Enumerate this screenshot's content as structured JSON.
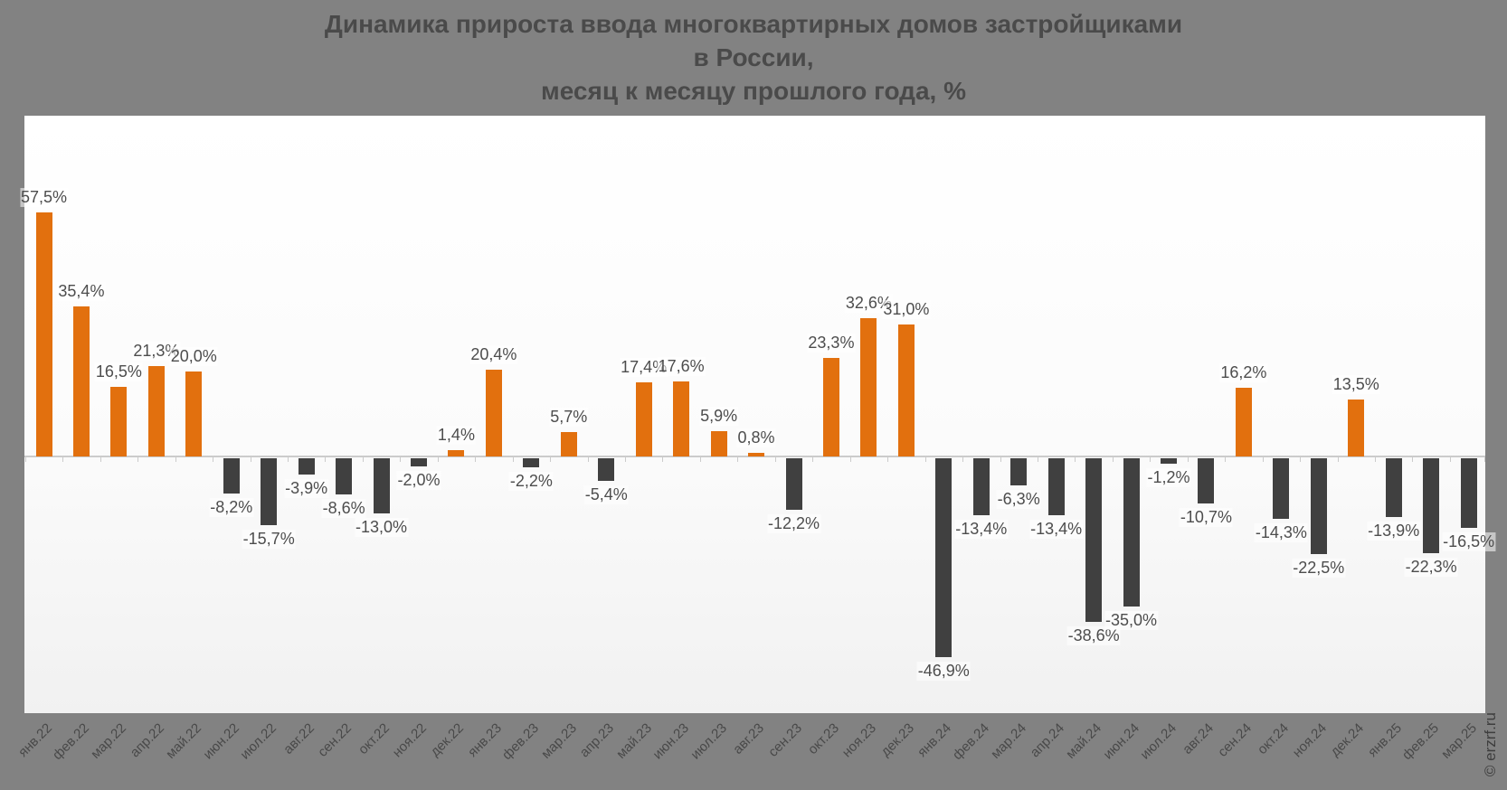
{
  "title": {
    "lines": [
      "Динамика прироста ввода многоквартирных домов застройщиками",
      "в России,",
      "месяц к месяцу прошлого года, %"
    ]
  },
  "watermark": "© erzrf.ru",
  "colors": {
    "page_background": "#828282",
    "positive_bar": "#e2700e",
    "negative_bar": "#404040",
    "axis": "#cbcbcb",
    "title_text": "#4a4a4a",
    "value_label_text": "#4d4d4d",
    "axis_label_text": "#494949"
  },
  "chart_data": {
    "type": "bar",
    "title": "Динамика прироста ввода многоквартирных домов застройщиками в России, месяц к месяцу прошлого года, %",
    "xlabel": "",
    "ylabel": "",
    "ylim": [
      -60,
      80
    ],
    "grid": false,
    "legend": false,
    "positive_color": "#e2700e",
    "negative_color": "#404040",
    "categories": [
      "янв.22",
      "фев.22",
      "мар.22",
      "апр.22",
      "май.22",
      "июн.22",
      "июл.22",
      "авг.22",
      "сен.22",
      "окт.22",
      "ноя.22",
      "дек.22",
      "янв.23",
      "фев.23",
      "мар.23",
      "апр.23",
      "май.23",
      "июн.23",
      "июл.23",
      "авг.23",
      "сен.23",
      "окт.23",
      "ноя.23",
      "дек.23",
      "янв.24",
      "фев.24",
      "мар.24",
      "апр.24",
      "май.24",
      "июн.24",
      "июл.24",
      "авг.24",
      "сен.24",
      "окт.24",
      "ноя.24",
      "дек.24",
      "янв.25",
      "фев.25",
      "мар.25"
    ],
    "values": [
      57.5,
      35.4,
      16.5,
      21.3,
      20.0,
      -8.2,
      -15.7,
      -3.9,
      -8.6,
      -13.0,
      -2.0,
      1.4,
      20.4,
      -2.2,
      5.7,
      -5.4,
      17.4,
      17.6,
      5.9,
      0.8,
      -12.2,
      23.3,
      32.6,
      31.0,
      -46.9,
      -13.4,
      -6.3,
      -13.4,
      -38.6,
      -35.0,
      -1.2,
      -10.7,
      16.2,
      -14.3,
      -22.5,
      13.5,
      -13.9,
      -22.3,
      -16.5
    ],
    "value_labels": [
      "57,5%",
      "35,4%",
      "16,5%",
      "21,3%",
      "20,0%",
      "-8,2%",
      "-15,7%",
      "-3,9%",
      "-8,6%",
      "-13,0%",
      "-2,0%",
      "1,4%",
      "20,4%",
      "-2,2%",
      "5,7%",
      "-5,4%",
      "17,4%",
      "17,6%",
      "5,9%",
      "0,8%",
      "-12,2%",
      "23,3%",
      "32,6%",
      "31,0%",
      "-46,9%",
      "-13,4%",
      "-6,3%",
      "-13,4%",
      "-38,6%",
      "-35,0%",
      "-1,2%",
      "-10,7%",
      "16,2%",
      "-14,3%",
      "-22,5%",
      "13,5%",
      "-13,9%",
      "-22,3%",
      "-16,5%"
    ]
  }
}
